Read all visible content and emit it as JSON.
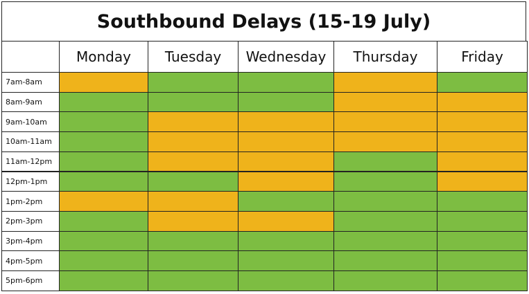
{
  "chart_data": {
    "type": "heatmap",
    "title": "Southbound Delays (15-19 July)",
    "columns": [
      "Monday",
      "Tuesday",
      "Wednesday",
      "Thursday",
      "Friday"
    ],
    "rows": [
      "7am-8am",
      "8am-9am",
      "9am-10am",
      "10am-11am",
      "11am-12pm",
      "12pm-1pm",
      "1pm-2pm",
      "2pm-3pm",
      "3pm-4pm",
      "4pm-5pm",
      "5pm-6pm"
    ],
    "values": [
      [
        "orange",
        "green",
        "green",
        "orange",
        "green"
      ],
      [
        "green",
        "green",
        "green",
        "orange",
        "orange"
      ],
      [
        "green",
        "orange",
        "orange",
        "orange",
        "orange"
      ],
      [
        "green",
        "orange",
        "orange",
        "orange",
        "orange"
      ],
      [
        "green",
        "orange",
        "orange",
        "green",
        "orange"
      ],
      [
        "green",
        "green",
        "orange",
        "green",
        "orange"
      ],
      [
        "orange",
        "orange",
        "green",
        "green",
        "green"
      ],
      [
        "green",
        "orange",
        "orange",
        "green",
        "green"
      ],
      [
        "green",
        "green",
        "green",
        "green",
        "green"
      ],
      [
        "green",
        "green",
        "green",
        "green",
        "green"
      ],
      [
        "green",
        "green",
        "green",
        "green",
        "green"
      ]
    ],
    "colors": {
      "green": "#7dbd42",
      "orange": "#efb31b"
    },
    "grid": true
  }
}
